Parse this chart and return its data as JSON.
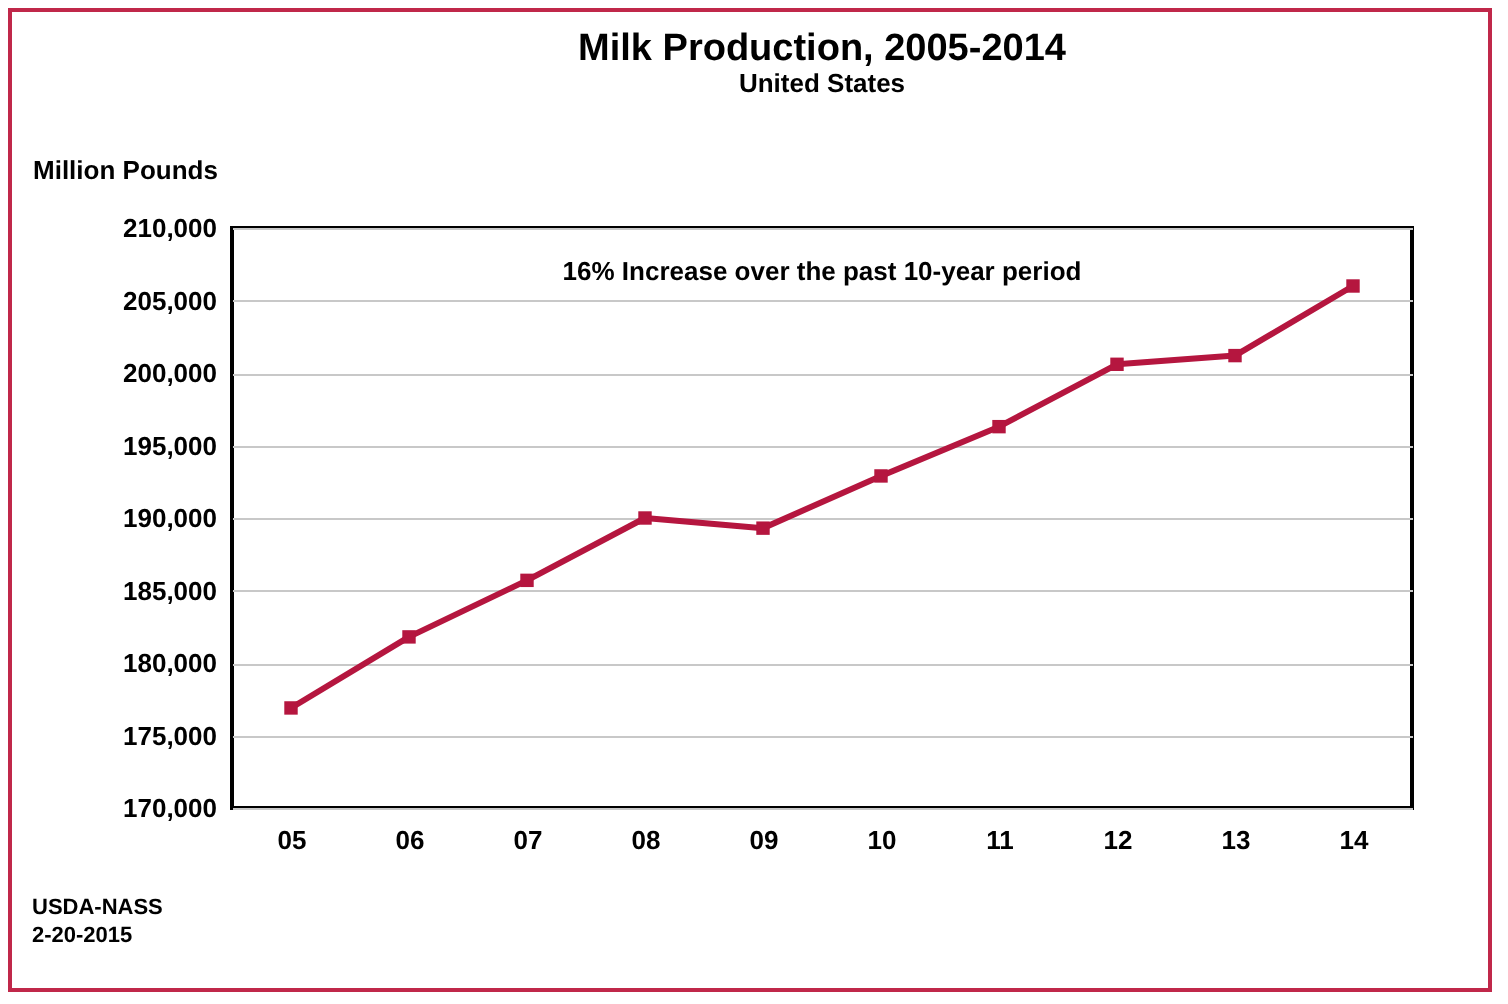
{
  "chart_data": {
    "type": "line",
    "title": "Milk Production, 2005-2014",
    "subtitle": "United States",
    "ylabel": "Million Pounds",
    "categories": [
      "05",
      "06",
      "07",
      "08",
      "09",
      "10",
      "11",
      "12",
      "13",
      "14"
    ],
    "series": [
      {
        "color": "#b5163f",
        "values": [
          176900,
          181800,
          185700,
          190000,
          189300,
          192900,
          196300,
          200600,
          201200,
          206000
        ]
      }
    ],
    "ylim": [
      170000,
      210000
    ],
    "yticks": [
      {
        "value": 170000,
        "label": "170,000"
      },
      {
        "value": 175000,
        "label": "175,000"
      },
      {
        "value": 180000,
        "label": "180,000"
      },
      {
        "value": 185000,
        "label": "185,000"
      },
      {
        "value": 190000,
        "label": "190,000"
      },
      {
        "value": 195000,
        "label": "195,000"
      },
      {
        "value": 200000,
        "label": "200,000"
      },
      {
        "value": 205000,
        "label": "205,000"
      },
      {
        "value": 210000,
        "label": "210,000"
      }
    ],
    "grid": "y",
    "marker": "square",
    "line_style": "solid",
    "annotations": [
      "16% Increase over the past 10-year period",
      "USDA-NASS",
      "2-20-2015"
    ]
  }
}
